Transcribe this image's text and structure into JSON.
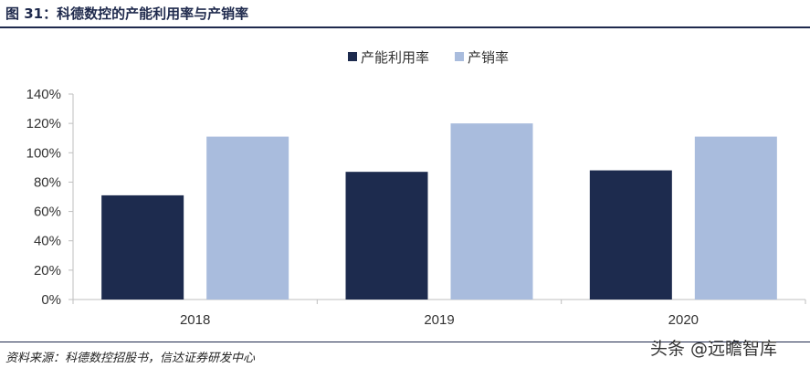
{
  "figure": {
    "title": "图 31：科德数控的产能利用率与产销率",
    "source": "资料来源：科德数控招股书，信达证券研发中心",
    "watermark": "头条 @远瞻智库"
  },
  "colors": {
    "capacity_utilization": "#1d2b4e",
    "production_sales_ratio": "#a9bcdd",
    "title": "#1f2a4d"
  },
  "chart_data": {
    "type": "bar",
    "categories": [
      "2018",
      "2019",
      "2020"
    ],
    "series": [
      {
        "name": "产能利用率",
        "values": [
          71,
          87,
          88
        ]
      },
      {
        "name": "产销率",
        "values": [
          111,
          120,
          111
        ]
      }
    ],
    "ylim": [
      0,
      140
    ],
    "yticks": [
      "0%",
      "20%",
      "40%",
      "60%",
      "80%",
      "100%",
      "120%",
      "140%"
    ],
    "y_unit": "%",
    "grid": false,
    "legend_position": "top-center"
  }
}
